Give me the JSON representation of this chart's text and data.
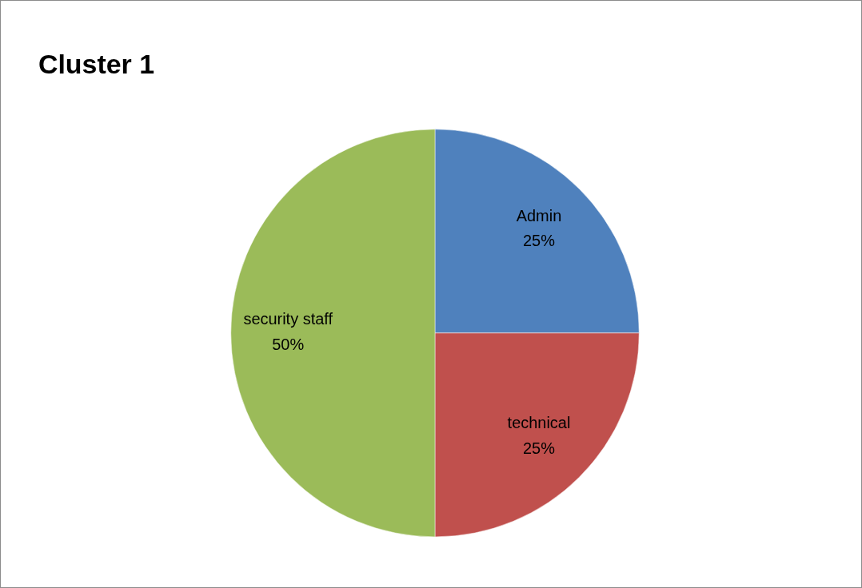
{
  "chart_data": {
    "type": "pie",
    "title": "Cluster 1",
    "categories": [
      "Admin",
      "technical",
      "security staff"
    ],
    "values": [
      25,
      25,
      50
    ],
    "value_labels": [
      "25%",
      "25%",
      "50%"
    ],
    "colors": [
      "#4f81bd",
      "#c0504d",
      "#9bbb59"
    ],
    "legend": false
  }
}
